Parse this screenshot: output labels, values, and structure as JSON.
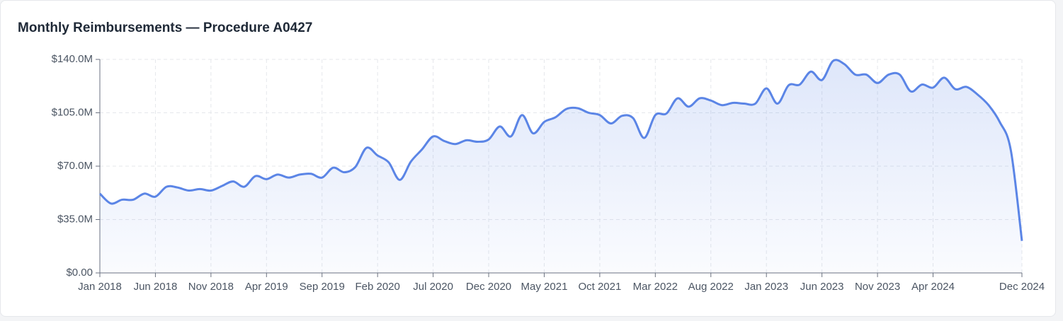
{
  "chart_data": {
    "type": "area",
    "title": "Monthly Reimbursements — Procedure A0427",
    "color": "#5b85e6",
    "x": [
      "Jan 2018",
      "Feb 2018",
      "Mar 2018",
      "Apr 2018",
      "May 2018",
      "Jun 2018",
      "Jul 2018",
      "Aug 2018",
      "Sep 2018",
      "Oct 2018",
      "Nov 2018",
      "Dec 2018",
      "Jan 2019",
      "Feb 2019",
      "Mar 2019",
      "Apr 2019",
      "May 2019",
      "Jun 2019",
      "Jul 2019",
      "Aug 2019",
      "Sep 2019",
      "Oct 2019",
      "Nov 2019",
      "Dec 2019",
      "Jan 2020",
      "Feb 2020",
      "Mar 2020",
      "Apr 2020",
      "May 2020",
      "Jun 2020",
      "Jul 2020",
      "Aug 2020",
      "Sep 2020",
      "Oct 2020",
      "Nov 2020",
      "Dec 2020",
      "Jan 2021",
      "Feb 2021",
      "Mar 2021",
      "Apr 2021",
      "May 2021",
      "Jun 2021",
      "Jul 2021",
      "Aug 2021",
      "Sep 2021",
      "Oct 2021",
      "Nov 2021",
      "Dec 2021",
      "Jan 2022",
      "Feb 2022",
      "Mar 2022",
      "Apr 2022",
      "May 2022",
      "Jun 2022",
      "Jul 2022",
      "Aug 2022",
      "Sep 2022",
      "Oct 2022",
      "Nov 2022",
      "Dec 2022",
      "Jan 2023",
      "Feb 2023",
      "Mar 2023",
      "Apr 2023",
      "May 2023",
      "Jun 2023",
      "Jul 2023",
      "Aug 2023",
      "Sep 2023",
      "Oct 2023",
      "Nov 2023",
      "Dec 2023",
      "Jan 2024",
      "Feb 2024",
      "Mar 2024",
      "Apr 2024",
      "May 2024",
      "Jun 2024",
      "Jul 2024",
      "Aug 2024",
      "Sep 2024",
      "Oct 2024",
      "Nov 2024",
      "Dec 2024"
    ],
    "values": [
      52,
      45.5,
      48,
      48,
      52,
      50,
      56.5,
      56,
      54,
      55,
      54,
      57,
      60,
      56.5,
      63.5,
      61.5,
      64.5,
      62.5,
      64.5,
      65,
      62.5,
      69,
      66,
      69.5,
      82,
      77,
      72.5,
      61,
      73,
      81,
      89.5,
      86.5,
      84.5,
      87,
      86,
      87.5,
      96,
      89.5,
      103.5,
      91.5,
      99,
      102,
      107.5,
      108,
      105,
      103.5,
      98,
      103,
      101.5,
      88.5,
      103.5,
      104.5,
      114.5,
      109,
      114.5,
      113,
      110,
      111.5,
      111,
      111,
      121,
      111,
      123,
      123.5,
      132,
      126.5,
      139,
      137,
      130,
      130,
      124.5,
      130,
      130,
      119,
      123.5,
      121.5,
      128,
      120.5,
      122,
      117,
      110,
      99,
      80.5,
      21
    ],
    "ylim": [
      0,
      140
    ],
    "yticks": [
      {
        "value": 0,
        "label": "$0.00"
      },
      {
        "value": 35,
        "label": "$35.0M"
      },
      {
        "value": 70,
        "label": "$70.0M"
      },
      {
        "value": 105,
        "label": "$105.0M"
      },
      {
        "value": 140,
        "label": "$140.0M"
      }
    ],
    "xticks": [
      "Jan 2018",
      "Jun 2018",
      "Nov 2018",
      "Apr 2019",
      "Sep 2019",
      "Feb 2020",
      "Jul 2020",
      "Dec 2020",
      "May 2021",
      "Oct 2021",
      "Mar 2022",
      "Aug 2022",
      "Jan 2023",
      "Jun 2023",
      "Nov 2023",
      "Apr 2024",
      "Dec 2024"
    ],
    "grid": true
  }
}
